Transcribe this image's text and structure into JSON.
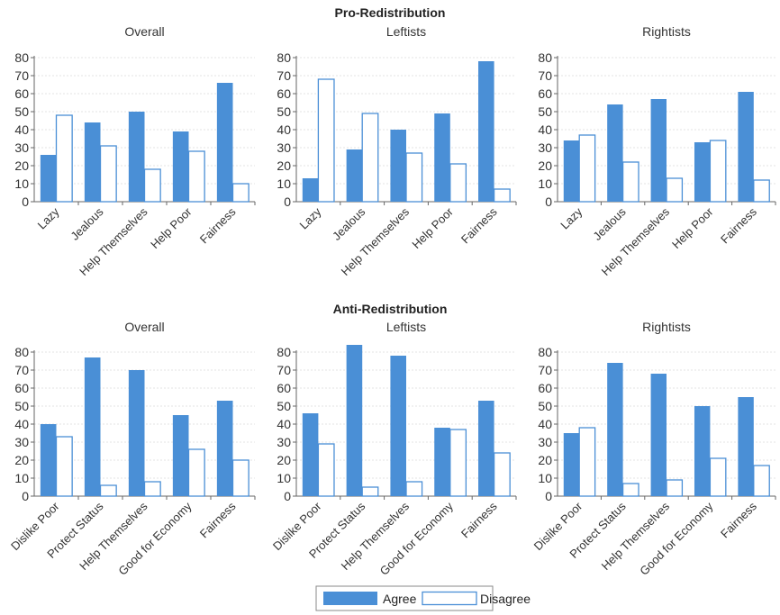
{
  "colors": {
    "agree": "#4a8fd6",
    "disagree_fill": "#ffffff",
    "disagree_stroke": "#4a8fd6",
    "axis": "#666666",
    "grid": "#e3e3e3"
  },
  "sections": [
    {
      "title": "Pro-Redistribution"
    },
    {
      "title": "Anti-Redistribution"
    }
  ],
  "legend": {
    "items": [
      "Agree",
      "Disagree"
    ]
  },
  "chart_data": [
    {
      "type": "bar",
      "section": "Pro-Redistribution",
      "title": "Overall",
      "categories": [
        "Lazy",
        "Jealous",
        "Help Themselves",
        "Help Poor",
        "Fairness"
      ],
      "series": [
        {
          "name": "Agree",
          "values": [
            26,
            44,
            50,
            39,
            66
          ]
        },
        {
          "name": "Disagree",
          "values": [
            48,
            31,
            18,
            28,
            10
          ]
        }
      ],
      "ylim": [
        0,
        80
      ],
      "yticks": [
        0,
        10,
        20,
        30,
        40,
        50,
        60,
        70,
        80
      ]
    },
    {
      "type": "bar",
      "section": "Pro-Redistribution",
      "title": "Leftists",
      "categories": [
        "Lazy",
        "Jealous",
        "Help Themselves",
        "Help Poor",
        "Fairness"
      ],
      "series": [
        {
          "name": "Agree",
          "values": [
            13,
            29,
            40,
            49,
            78
          ]
        },
        {
          "name": "Disagree",
          "values": [
            68,
            49,
            27,
            21,
            7
          ]
        }
      ],
      "ylim": [
        0,
        80
      ],
      "yticks": [
        0,
        10,
        20,
        30,
        40,
        50,
        60,
        70,
        80
      ]
    },
    {
      "type": "bar",
      "section": "Pro-Redistribution",
      "title": "Rightists",
      "categories": [
        "Lazy",
        "Jealous",
        "Help Themselves",
        "Help Poor",
        "Fairness"
      ],
      "series": [
        {
          "name": "Agree",
          "values": [
            34,
            54,
            57,
            33,
            61
          ]
        },
        {
          "name": "Disagree",
          "values": [
            37,
            22,
            13,
            34,
            12
          ]
        }
      ],
      "ylim": [
        0,
        80
      ],
      "yticks": [
        0,
        10,
        20,
        30,
        40,
        50,
        60,
        70,
        80
      ]
    },
    {
      "type": "bar",
      "section": "Anti-Redistribution",
      "title": "Overall",
      "categories": [
        "Dislike Poor",
        "Protect Status",
        "Help Themselves",
        "Good for Economy",
        "Fairness"
      ],
      "series": [
        {
          "name": "Agree",
          "values": [
            40,
            77,
            70,
            45,
            53
          ]
        },
        {
          "name": "Disagree",
          "values": [
            33,
            6,
            8,
            26,
            20
          ]
        }
      ],
      "ylim": [
        0,
        80
      ],
      "yticks": [
        0,
        10,
        20,
        30,
        40,
        50,
        60,
        70,
        80
      ]
    },
    {
      "type": "bar",
      "section": "Anti-Redistribution",
      "title": "Leftists",
      "categories": [
        "Dislike Poor",
        "Protect Status",
        "Help Themselves",
        "Good for Economy",
        "Fairness"
      ],
      "series": [
        {
          "name": "Agree",
          "values": [
            46,
            84,
            78,
            38,
            53
          ]
        },
        {
          "name": "Disagree",
          "values": [
            29,
            5,
            8,
            37,
            24
          ]
        }
      ],
      "ylim": [
        0,
        80
      ],
      "yticks": [
        0,
        10,
        20,
        30,
        40,
        50,
        60,
        70,
        80
      ]
    },
    {
      "type": "bar",
      "section": "Anti-Redistribution",
      "title": "Rightists",
      "categories": [
        "Dislike Poor",
        "Protect Status",
        "Help Themselves",
        "Good for Economy",
        "Fairness"
      ],
      "series": [
        {
          "name": "Agree",
          "values": [
            35,
            74,
            68,
            50,
            55
          ]
        },
        {
          "name": "Disagree",
          "values": [
            38,
            7,
            9,
            21,
            17
          ]
        }
      ],
      "ylim": [
        0,
        80
      ],
      "yticks": [
        0,
        10,
        20,
        30,
        40,
        50,
        60,
        70,
        80
      ]
    }
  ]
}
